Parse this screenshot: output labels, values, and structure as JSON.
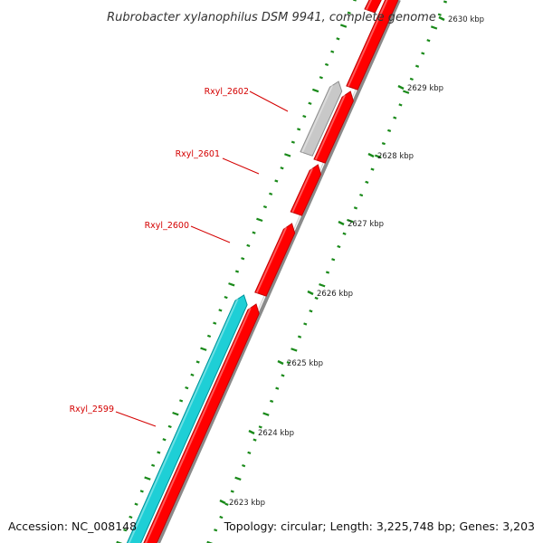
{
  "title": "Rubrobacter xylanophilus DSM 9941, complete genome",
  "accession": "Accession: NC_008148",
  "summary": "Topology: circular; Length: 3,225,748 bp; Genes: 3,203",
  "colors": {
    "forward_gene": "#ff0000",
    "reverse_gene": "#1ecfd6",
    "gray_gene": "#c8c8c8",
    "backbone": "#8a8a8a",
    "label_red": "#d40000",
    "tick_green": "#1a8a1a"
  },
  "ruler_ticks": [
    "2630 kbp",
    "2629 kbp",
    "2628 kbp",
    "2627 kbp",
    "2626 kbp",
    "2625 kbp",
    "2624 kbp",
    "2623 kbp"
  ],
  "genes": [
    {
      "label": "Rxyl_2602"
    },
    {
      "label": "Rxyl_2601"
    },
    {
      "label": "Rxyl_2600"
    },
    {
      "label": "Rxyl_2599"
    }
  ]
}
